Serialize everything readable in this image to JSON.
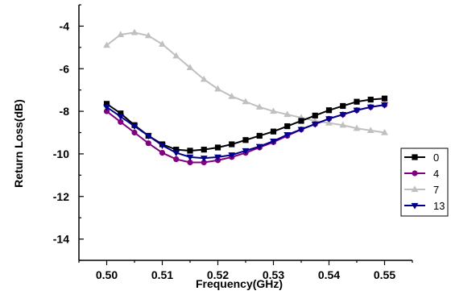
{
  "chart_data": {
    "type": "line",
    "xlabel": "Frequency(GHz)",
    "ylabel": "Return Loss(dB)",
    "xlim": [
      0.495,
      0.555
    ],
    "ylim": [
      -15,
      -3
    ],
    "x_ticks": [
      0.5,
      0.51,
      0.52,
      0.53,
      0.54,
      0.55
    ],
    "x_tick_labels": [
      "0.50",
      "0.51",
      "0.52",
      "0.53",
      "0.54",
      "0.55"
    ],
    "y_ticks": [
      -14,
      -12,
      -10,
      -8,
      -6,
      -4
    ],
    "y_tick_labels": [
      "-14",
      "-12",
      "-10",
      "-8",
      "-6",
      "-4"
    ],
    "grid": false,
    "legend_position": "right",
    "x": [
      0.5,
      0.5025,
      0.505,
      0.5075,
      0.51,
      0.5125,
      0.515,
      0.5175,
      0.52,
      0.5225,
      0.525,
      0.5275,
      0.53,
      0.5325,
      0.535,
      0.5375,
      0.54,
      0.5425,
      0.545,
      0.5475,
      0.55
    ],
    "series": [
      {
        "name": "0",
        "color": "#000000",
        "marker": "square",
        "values": [
          -7.65,
          -8.1,
          -8.65,
          -9.15,
          -9.55,
          -9.8,
          -9.85,
          -9.8,
          -9.7,
          -9.55,
          -9.35,
          -9.15,
          -8.95,
          -8.7,
          -8.45,
          -8.2,
          -7.95,
          -7.75,
          -7.55,
          -7.45,
          -7.4
        ]
      },
      {
        "name": "4",
        "color": "#800080",
        "marker": "circle",
        "values": [
          -8.0,
          -8.5,
          -9.0,
          -9.5,
          -9.95,
          -10.25,
          -10.4,
          -10.4,
          -10.3,
          -10.15,
          -9.95,
          -9.7,
          -9.45,
          -9.15,
          -8.85,
          -8.6,
          -8.35,
          -8.15,
          -7.95,
          -7.8,
          -7.7
        ]
      },
      {
        "name": "7",
        "color": "#c0c0c0",
        "marker": "triangle-up",
        "values": [
          -4.9,
          -4.4,
          -4.3,
          -4.45,
          -4.85,
          -5.4,
          -5.95,
          -6.5,
          -6.95,
          -7.3,
          -7.55,
          -7.8,
          -8.0,
          -8.15,
          -8.3,
          -8.45,
          -8.55,
          -8.65,
          -8.8,
          -8.9,
          -9.0
        ]
      },
      {
        "name": "13",
        "color": "#00008b",
        "marker": "triangle-down",
        "values": [
          -7.8,
          -8.25,
          -8.7,
          -9.15,
          -9.6,
          -9.95,
          -10.15,
          -10.2,
          -10.15,
          -10.05,
          -9.85,
          -9.65,
          -9.4,
          -9.1,
          -8.85,
          -8.6,
          -8.35,
          -8.15,
          -7.95,
          -7.8,
          -7.7
        ]
      }
    ]
  }
}
